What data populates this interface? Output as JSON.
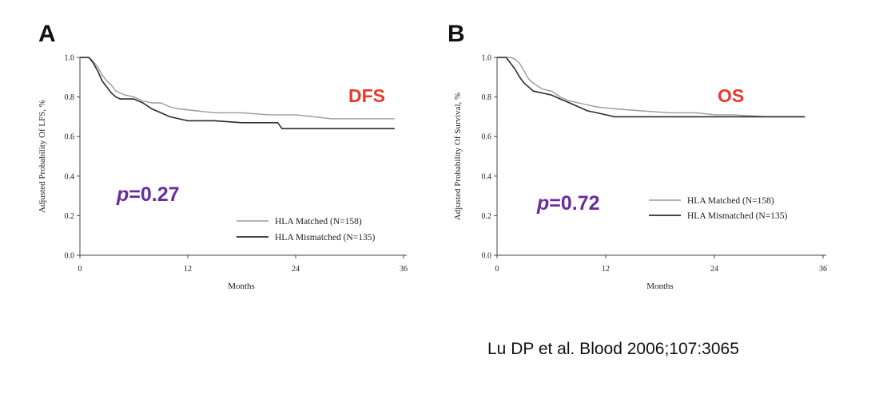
{
  "citation": "Lu DP et al. Blood 2006;107:3065",
  "colors": {
    "matched": "#9a9a9a",
    "mismatched": "#2b2b2b",
    "endpoint_label": "#e8392b",
    "pvalue": "#6a2c9e"
  },
  "chart_data": [
    {
      "type": "line",
      "panel": "A",
      "xlabel": "Months",
      "ylabel": "Adjusted Probability Of LFS, %",
      "xlim": [
        0,
        36
      ],
      "ylim": [
        0,
        1.0
      ],
      "x_ticks": [
        0,
        12,
        24,
        36
      ],
      "y_ticks": [
        0.0,
        0.2,
        0.4,
        0.6,
        0.8,
        1.0
      ],
      "x_tick_labels": [
        "0",
        "12",
        "24",
        "36"
      ],
      "y_tick_labels": [
        "0.0",
        "0.2",
        "0.4",
        "0.6",
        "0.8",
        "1.0"
      ],
      "annotation_label": "DFS",
      "pvalue": {
        "prefix": "p",
        "text": "=0.27"
      },
      "legend_position": "bottom-right",
      "series": [
        {
          "name": "HLA Matched (N=158)",
          "key": "matched",
          "points": [
            [
              0,
              1.0
            ],
            [
              1,
              1.0
            ],
            [
              1.5,
              0.98
            ],
            [
              2,
              0.95
            ],
            [
              2.5,
              0.91
            ],
            [
              3,
              0.88
            ],
            [
              3.5,
              0.86
            ],
            [
              4,
              0.83
            ],
            [
              5,
              0.81
            ],
            [
              6,
              0.8
            ],
            [
              7,
              0.78
            ],
            [
              8,
              0.77
            ],
            [
              9,
              0.77
            ],
            [
              10,
              0.75
            ],
            [
              11,
              0.74
            ],
            [
              13,
              0.73
            ],
            [
              15,
              0.72
            ],
            [
              18,
              0.72
            ],
            [
              21,
              0.71
            ],
            [
              24,
              0.71
            ],
            [
              26,
              0.7
            ],
            [
              28,
              0.69
            ],
            [
              32,
              0.69
            ],
            [
              35,
              0.69
            ]
          ]
        },
        {
          "name": "HLA Mismatched (N=135)",
          "key": "mismatched",
          "points": [
            [
              0,
              1.0
            ],
            [
              1,
              1.0
            ],
            [
              1.5,
              0.97
            ],
            [
              2,
              0.93
            ],
            [
              2.5,
              0.88
            ],
            [
              3,
              0.85
            ],
            [
              3.5,
              0.82
            ],
            [
              4,
              0.8
            ],
            [
              4.5,
              0.79
            ],
            [
              6,
              0.79
            ],
            [
              7,
              0.77
            ],
            [
              8,
              0.74
            ],
            [
              9,
              0.72
            ],
            [
              10,
              0.7
            ],
            [
              11,
              0.69
            ],
            [
              12,
              0.68
            ],
            [
              15,
              0.68
            ],
            [
              18,
              0.67
            ],
            [
              21,
              0.67
            ],
            [
              22,
              0.67
            ],
            [
              22.5,
              0.64
            ],
            [
              30,
              0.64
            ],
            [
              35,
              0.64
            ]
          ]
        }
      ]
    },
    {
      "type": "line",
      "panel": "B",
      "xlabel": "Months",
      "ylabel": "Adjusted Probability Of Survival, %",
      "xlim": [
        0,
        36
      ],
      "ylim": [
        0,
        1.0
      ],
      "x_ticks": [
        0,
        12,
        24,
        36
      ],
      "y_ticks": [
        0.0,
        0.2,
        0.4,
        0.6,
        0.8,
        1.0
      ],
      "x_tick_labels": [
        "0",
        "12",
        "24",
        "36"
      ],
      "y_tick_labels": [
        "0.0",
        "0.2",
        "0.4",
        "0.6",
        "0.8",
        "1.0"
      ],
      "annotation_label": "OS",
      "pvalue": {
        "prefix": "p",
        "text": "=0.72"
      },
      "legend_position": "right",
      "series": [
        {
          "name": "HLA Matched (N=158)",
          "key": "matched",
          "points": [
            [
              0,
              1.0
            ],
            [
              1.5,
              1.0
            ],
            [
              2,
              0.99
            ],
            [
              2.5,
              0.97
            ],
            [
              3,
              0.93
            ],
            [
              3.5,
              0.89
            ],
            [
              4,
              0.87
            ],
            [
              5,
              0.84
            ],
            [
              6,
              0.83
            ],
            [
              7,
              0.8
            ],
            [
              8,
              0.78
            ],
            [
              9,
              0.77
            ],
            [
              10,
              0.76
            ],
            [
              11,
              0.75
            ],
            [
              13,
              0.74
            ],
            [
              16,
              0.73
            ],
            [
              19,
              0.72
            ],
            [
              22,
              0.72
            ],
            [
              24,
              0.71
            ],
            [
              26,
              0.71
            ],
            [
              30,
              0.7
            ],
            [
              34,
              0.7
            ]
          ]
        },
        {
          "name": "HLA Mismatched (N=135)",
          "key": "mismatched",
          "points": [
            [
              0,
              1.0
            ],
            [
              1,
              1.0
            ],
            [
              1.5,
              0.97
            ],
            [
              2,
              0.94
            ],
            [
              2.5,
              0.9
            ],
            [
              3,
              0.87
            ],
            [
              3.5,
              0.85
            ],
            [
              4,
              0.83
            ],
            [
              5,
              0.82
            ],
            [
              6,
              0.81
            ],
            [
              7,
              0.79
            ],
            [
              8,
              0.77
            ],
            [
              9,
              0.75
            ],
            [
              10,
              0.73
            ],
            [
              11,
              0.72
            ],
            [
              12,
              0.71
            ],
            [
              13,
              0.7
            ],
            [
              16,
              0.7
            ],
            [
              20,
              0.7
            ],
            [
              24,
              0.7
            ],
            [
              30,
              0.7
            ],
            [
              34,
              0.7
            ]
          ]
        }
      ]
    }
  ]
}
